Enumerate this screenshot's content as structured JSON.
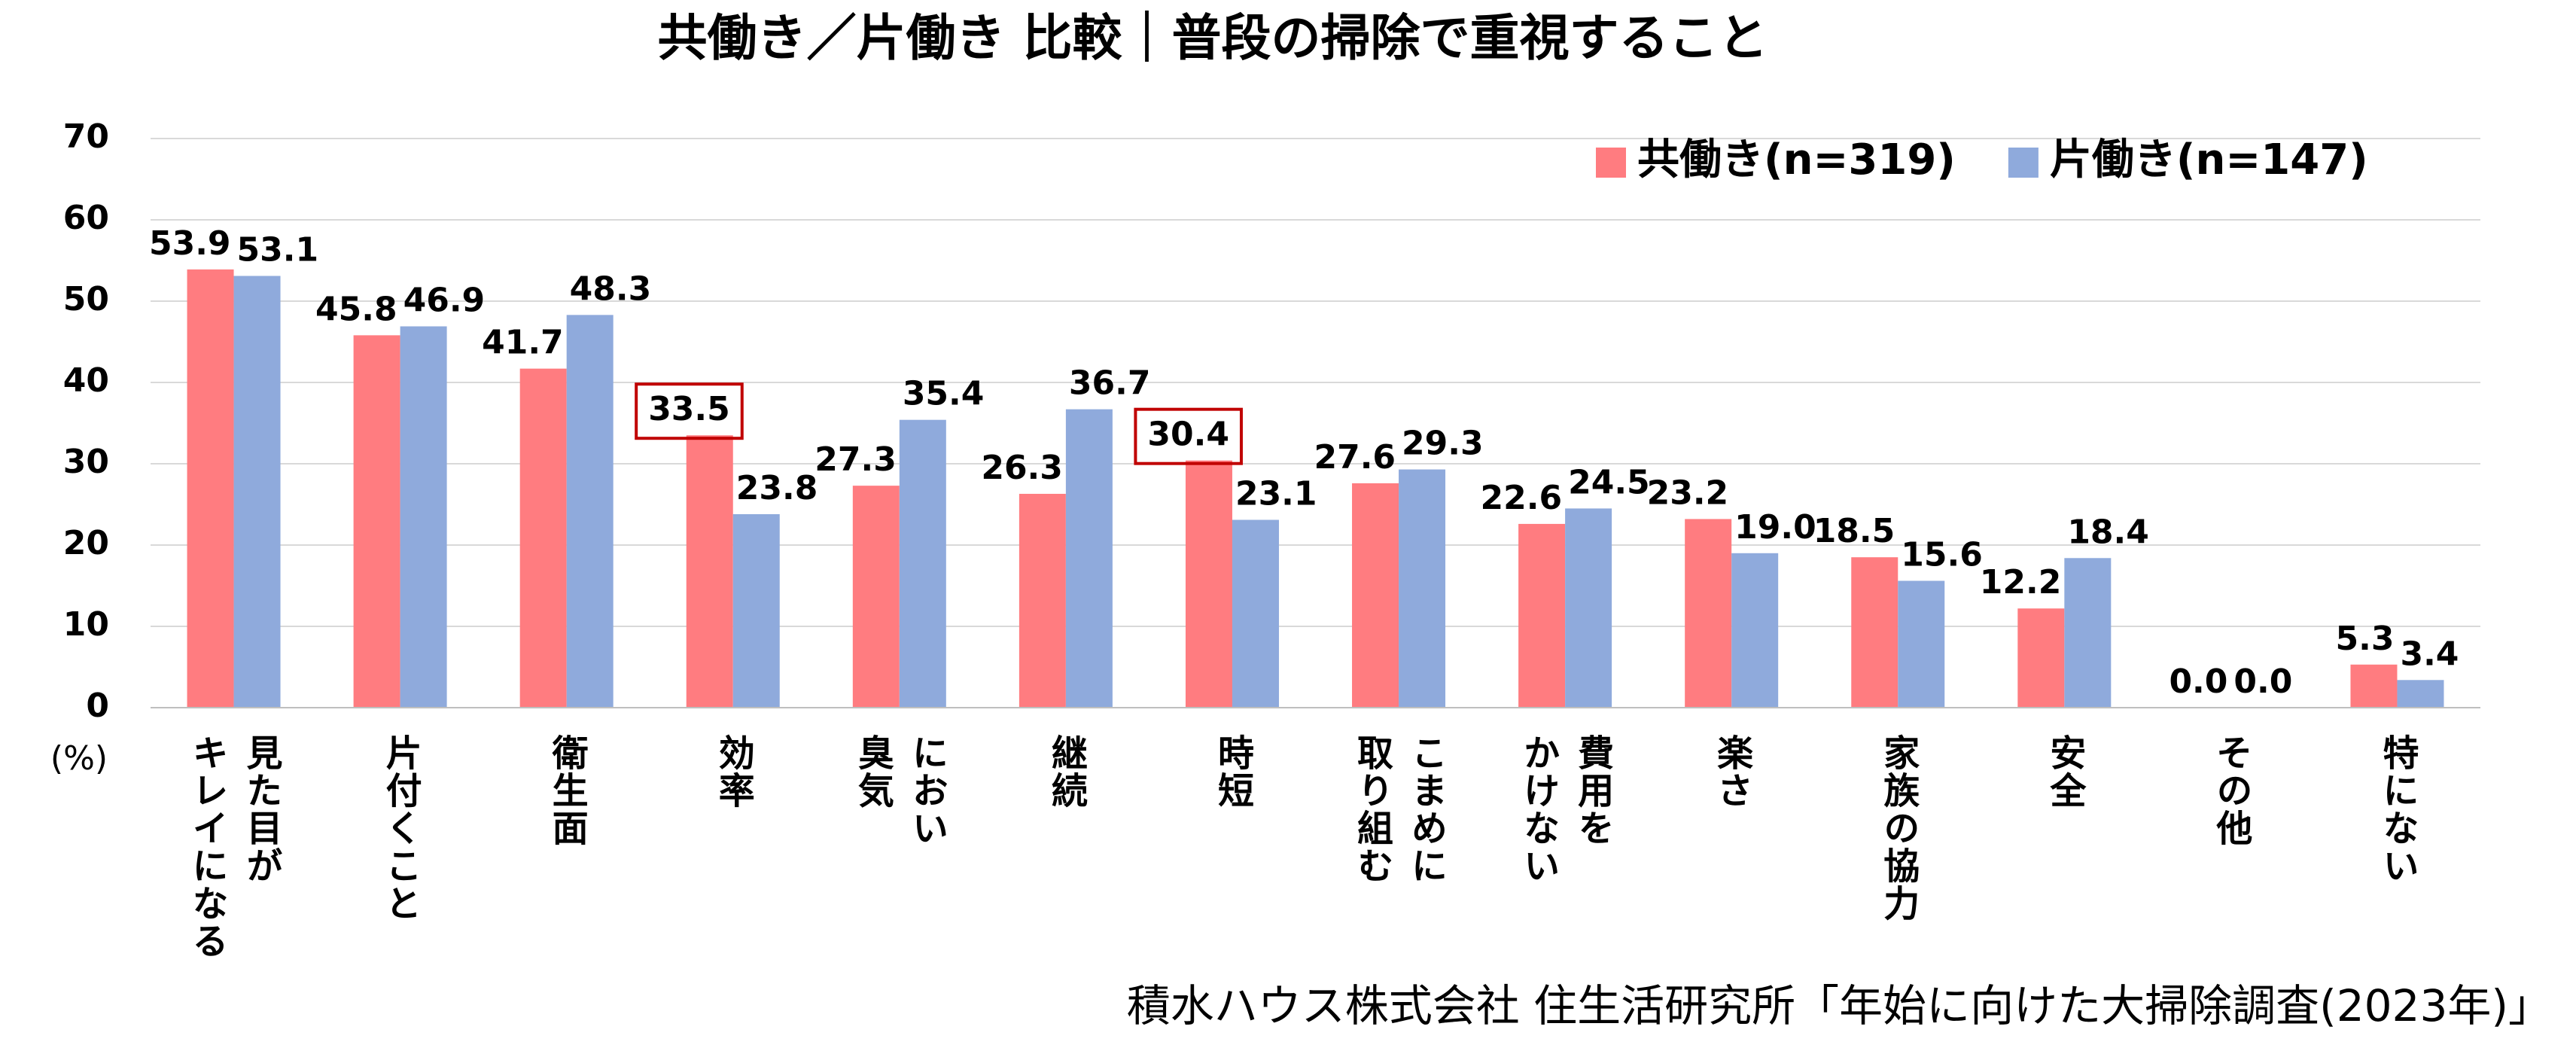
{
  "chart_data": {
    "type": "bar",
    "title": "共働き／片働き 比較｜普段の掃除で重視すること",
    "y_unit": "(%)",
    "source": "積水ハウス株式会社 住生活研究所「年始に向けた大掃除調査(2023年)」",
    "categories": [
      "見た目が\nキレイになる",
      "片付くこと",
      "衛生面",
      "効率",
      "におい\n臭気",
      "継続",
      "時短",
      "こまめに\n取り組む",
      "費用を\nかけない",
      "楽さ",
      "家族の協力",
      "安全",
      "その他",
      "特にない"
    ],
    "series": [
      {
        "name": "共働き(n=319)",
        "color": "#ff7c80",
        "values": [
          53.9,
          45.8,
          41.7,
          33.5,
          27.3,
          26.3,
          30.4,
          27.6,
          22.6,
          23.2,
          18.5,
          12.2,
          0,
          5.3
        ],
        "value_labels": [
          "53.9",
          "45.8",
          "41.7",
          "33.5",
          "27.3",
          "26.3",
          "30.4",
          "27.6",
          "22.6",
          "23.2",
          "18.5",
          "12.2",
          "0.0",
          "5.3"
        ],
        "highlighted_labels": [
          3,
          6
        ],
        "highlight_color": "#c00000"
      },
      {
        "name": "片働き(n=147)",
        "color": "#8faadc",
        "values": [
          53.1,
          46.9,
          48.3,
          23.8,
          35.4,
          36.7,
          23.1,
          29.3,
          24.5,
          19,
          15.6,
          18.4,
          0,
          3.4
        ],
        "value_labels": [
          "53.1",
          "46.9",
          "48.3",
          "23.8",
          "35.4",
          "36.7",
          "23.1",
          "29.3",
          "24.5",
          "19.0",
          "15.6",
          "18.4",
          "0.0",
          "3.4"
        ]
      }
    ],
    "ylim": [
      0,
      70
    ],
    "yticks": [
      0,
      10,
      20,
      30,
      40,
      50,
      60,
      70
    ],
    "grid": true,
    "legend": "top-right"
  }
}
